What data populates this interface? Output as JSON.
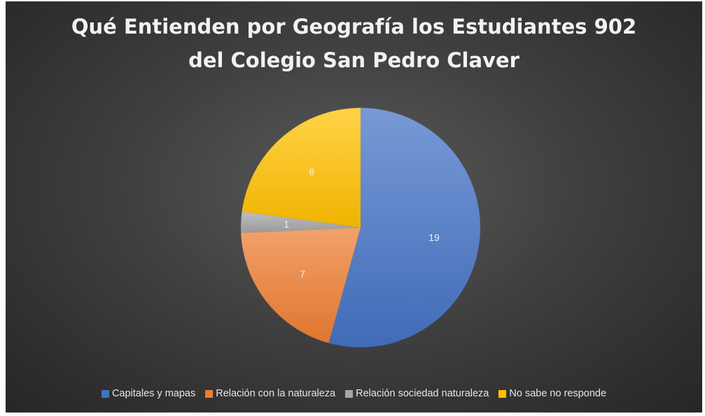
{
  "chart_data": {
    "type": "pie",
    "title_lines": [
      "Qué Entienden por Geografía los Estudiantes 902",
      "del Colegio San Pedro Claver"
    ],
    "categories": [
      "Capitales y mapas",
      "Relación con la naturaleza",
      "Relación sociedad naturaleza",
      "No sabe no responde"
    ],
    "values": [
      19,
      7,
      1,
      8
    ],
    "data_labels": [
      "19",
      "7",
      "1",
      "8"
    ],
    "colors": [
      "#4472C4",
      "#ED7D31",
      "#A5A5A5",
      "#FFC000"
    ],
    "legend_position": "bottom",
    "start_angle_deg": 0,
    "direction": "clockwise"
  }
}
